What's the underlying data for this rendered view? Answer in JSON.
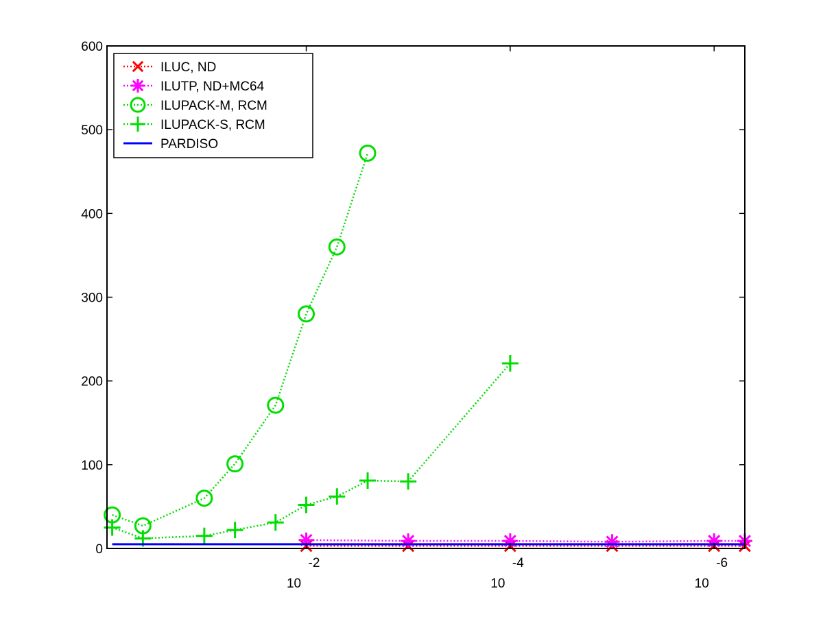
{
  "chart_data": {
    "type": "line",
    "title": "",
    "xlabel": "",
    "ylabel": "",
    "xscale": "log",
    "x_direction": "decreasing",
    "xlim": [
      0.9,
      5e-07
    ],
    "ylim": [
      0,
      600
    ],
    "grid": false,
    "legend_position": "top-left",
    "yticks": [
      "0",
      "100",
      "200",
      "300",
      "400",
      "500",
      "600"
    ],
    "xticks": [
      {
        "value": 0.01,
        "base": "10",
        "exp": "-2"
      },
      {
        "value": 0.0001,
        "base": "10",
        "exp": "-4"
      },
      {
        "value": 1e-06,
        "base": "10",
        "exp": "-6"
      }
    ],
    "series": [
      {
        "name": "ILUC,  ND",
        "color": "#ff0000",
        "marker": "x",
        "line": "dotted",
        "x": [
          0.01,
          0.001,
          0.0001,
          1e-05,
          1e-06,
          5e-07
        ],
        "y": [
          3,
          3,
          3,
          3,
          3,
          3
        ]
      },
      {
        "name": "ILUTP,  ND+MC64",
        "color": "#ff00ff",
        "marker": "asterisk",
        "line": "dotted",
        "x": [
          0.01,
          0.001,
          0.0001,
          1e-05,
          1e-06,
          5e-07
        ],
        "y": [
          10,
          9,
          9,
          8,
          9,
          9
        ]
      },
      {
        "name": "ILUPACK-M, RCM",
        "color": "#00dd00",
        "marker": "circle",
        "line": "dotted",
        "x": [
          0.8,
          0.4,
          0.1,
          0.05,
          0.02,
          0.01,
          0.005,
          0.0025
        ],
        "y": [
          40,
          27,
          60,
          101,
          171,
          280,
          360,
          472
        ]
      },
      {
        "name": "ILUPACK-S, RCM",
        "color": "#00dd00",
        "marker": "plus",
        "line": "dotted",
        "x": [
          0.8,
          0.4,
          0.1,
          0.05,
          0.02,
          0.01,
          0.005,
          0.0025,
          0.001,
          0.0001
        ],
        "y": [
          25,
          12,
          15,
          22,
          31,
          52,
          62,
          81,
          80,
          221
        ]
      },
      {
        "name": "PARDISO",
        "color": "#0000ff",
        "marker": "none",
        "line": "solid",
        "x": [
          0.8,
          5e-07
        ],
        "y": [
          5,
          5
        ]
      }
    ]
  }
}
